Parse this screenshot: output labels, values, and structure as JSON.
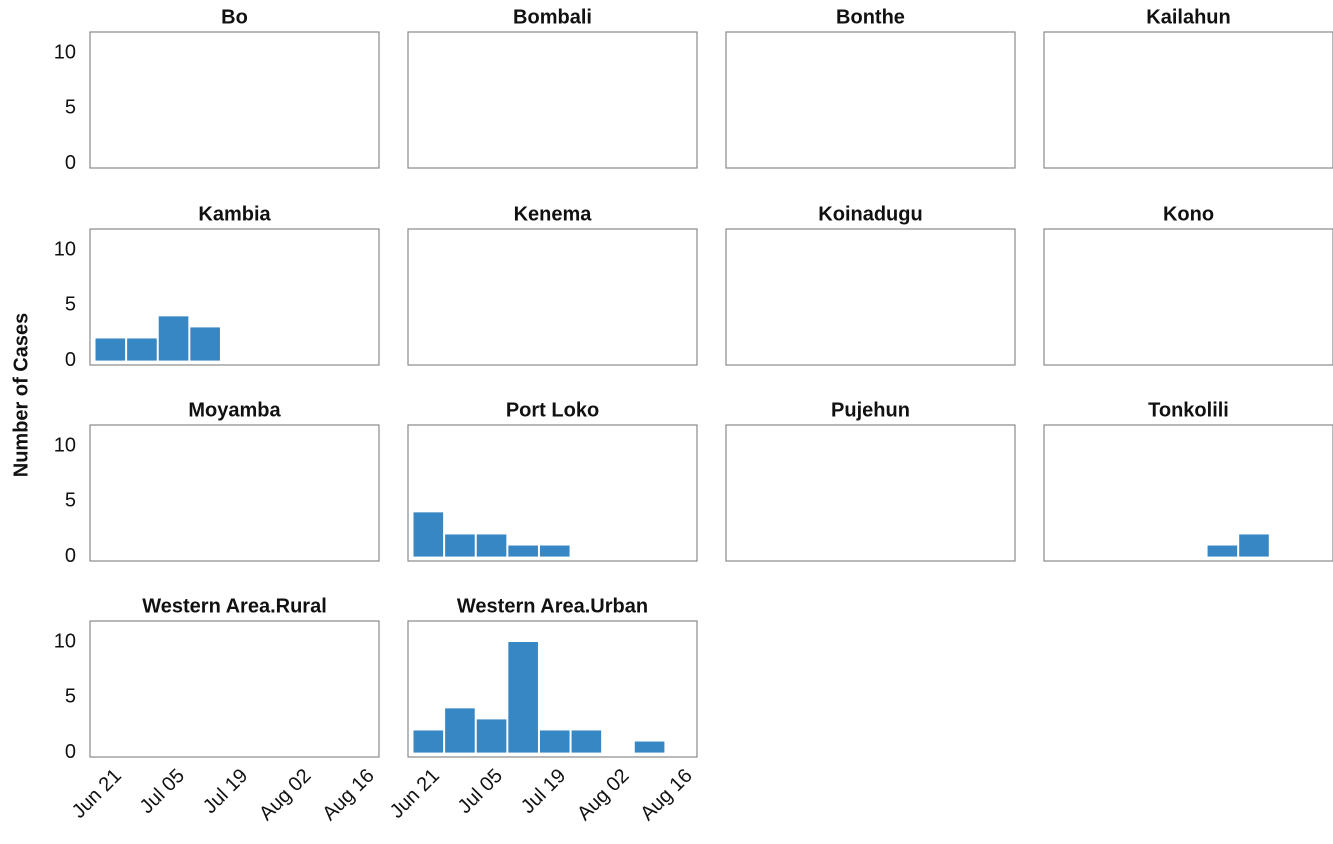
{
  "chart_data": {
    "type": "histogram",
    "ylabel": "Number of Cases",
    "color": "#3787c4",
    "bins": [
      168,
      175,
      182,
      189,
      196,
      203,
      210,
      217,
      224
    ],
    "xlim": [
      167,
      231
    ],
    "xticks": [
      {
        "value": 172,
        "label": "Jun 21"
      },
      {
        "value": 186,
        "label": "Jul 05"
      },
      {
        "value": 200,
        "label": "Jul 19"
      },
      {
        "value": 214,
        "label": "Aug 02"
      },
      {
        "value": 228,
        "label": "Aug 16"
      }
    ],
    "ylim": [
      -0.4,
      11.9
    ],
    "yticks": [
      0,
      5,
      10
    ],
    "panels": [
      {
        "title": "Bo",
        "counts": [
          0,
          0,
          0,
          0,
          0,
          0,
          0,
          0
        ]
      },
      {
        "title": "Bombali",
        "counts": [
          0,
          0,
          0,
          0,
          0,
          0,
          0,
          0
        ]
      },
      {
        "title": "Bonthe",
        "counts": [
          0,
          0,
          0,
          0,
          0,
          0,
          0,
          0
        ]
      },
      {
        "title": "Kailahun",
        "counts": [
          0,
          0,
          0,
          0,
          0,
          0,
          0,
          0
        ]
      },
      {
        "title": "Kambia",
        "counts": [
          2,
          2,
          4,
          3,
          0,
          0,
          0,
          0
        ]
      },
      {
        "title": "Kenema",
        "counts": [
          0,
          0,
          0,
          0,
          0,
          0,
          0,
          0
        ]
      },
      {
        "title": "Koinadugu",
        "counts": [
          0,
          0,
          0,
          0,
          0,
          0,
          0,
          0
        ]
      },
      {
        "title": "Kono",
        "counts": [
          0,
          0,
          0,
          0,
          0,
          0,
          0,
          0
        ]
      },
      {
        "title": "Moyamba",
        "counts": [
          0,
          0,
          0,
          0,
          0,
          0,
          0,
          0
        ]
      },
      {
        "title": "Port Loko",
        "counts": [
          4,
          2,
          2,
          1,
          1,
          0,
          0,
          0
        ]
      },
      {
        "title": "Pujehun",
        "counts": [
          0,
          0,
          0,
          0,
          0,
          0,
          0,
          0
        ]
      },
      {
        "title": "Tonkolili",
        "counts": [
          0,
          0,
          0,
          0,
          0,
          1,
          2,
          0
        ]
      },
      {
        "title": "Western Area.Rural",
        "counts": [
          0,
          0,
          0,
          0,
          0,
          0,
          0,
          0
        ]
      },
      {
        "title": "Western Area.Urban",
        "counts": [
          2,
          4,
          3,
          10,
          2,
          2,
          0,
          1
        ]
      }
    ]
  }
}
